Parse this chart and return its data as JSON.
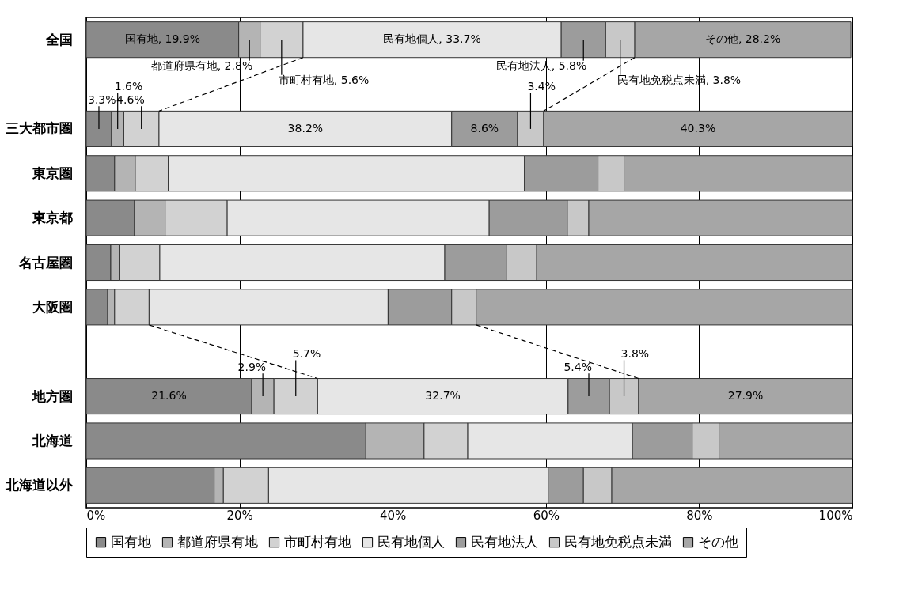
{
  "chart_data": {
    "type": "bar",
    "orientation": "horizontal",
    "stacked": true,
    "categories": [
      "全国",
      null,
      "三大都市圏",
      "東京圏",
      "東京都",
      "名古屋圏",
      "大阪圏",
      null,
      "地方圏",
      "北海道",
      "北海道以外"
    ],
    "series": [
      {
        "name": "国有地",
        "color": "#8a8a8a",
        "values": [
          19.9,
          null,
          3.3,
          3.7,
          6.3,
          3.2,
          2.8,
          null,
          21.6,
          36.5,
          16.7
        ],
        "value_labels": [
          "国有地, 19.9%",
          null,
          "3.3%",
          null,
          null,
          null,
          null,
          null,
          "21.6%",
          null,
          null
        ]
      },
      {
        "name": "都道府県有地",
        "color": "#b4b4b4",
        "values": [
          2.8,
          null,
          1.6,
          2.7,
          4.0,
          1.1,
          0.9,
          null,
          2.9,
          7.6,
          1.2
        ],
        "value_labels": [
          "都道府県有地, 2.8%",
          null,
          "1.6%",
          null,
          null,
          null,
          null,
          null,
          "2.9%",
          null,
          null
        ]
      },
      {
        "name": "市町村有地",
        "color": "#d2d2d2",
        "values": [
          5.6,
          null,
          4.6,
          4.3,
          8.1,
          5.3,
          4.5,
          null,
          5.7,
          5.7,
          5.9
        ],
        "value_labels": [
          "市町村有地, 5.6%",
          null,
          "4.6%",
          null,
          null,
          null,
          null,
          null,
          "5.7%",
          null,
          null
        ]
      },
      {
        "name": "民有地個人",
        "color": "#e6e6e6",
        "values": [
          33.7,
          null,
          38.2,
          46.5,
          34.2,
          37.2,
          31.2,
          null,
          32.7,
          21.5,
          36.5
        ],
        "value_labels": [
          "民有地個人, 33.7%",
          null,
          "38.2%",
          null,
          null,
          null,
          null,
          null,
          "32.7%",
          null,
          null
        ]
      },
      {
        "name": "民有地法人",
        "color": "#9c9c9c",
        "values": [
          5.8,
          null,
          8.6,
          9.6,
          10.2,
          8.1,
          8.3,
          null,
          5.4,
          7.8,
          4.6
        ],
        "value_labels": [
          "民有地法人, 5.8%",
          null,
          "8.6%",
          null,
          null,
          null,
          null,
          null,
          "5.4%",
          null,
          null
        ]
      },
      {
        "name": "民有地免税点未満",
        "color": "#c8c8c8",
        "values": [
          3.8,
          null,
          3.4,
          3.4,
          2.8,
          3.9,
          3.2,
          null,
          3.8,
          3.5,
          3.7
        ],
        "value_labels": [
          "民有地免税点未満, 3.8%",
          null,
          "3.4%",
          null,
          null,
          null,
          null,
          null,
          "3.8%",
          null,
          null
        ]
      },
      {
        "name": "その他",
        "color": "#a6a6a6",
        "values": [
          28.2,
          null,
          40.3,
          29.8,
          34.4,
          41.2,
          49.1,
          null,
          27.9,
          17.4,
          31.4
        ],
        "value_labels": [
          "その他, 28.2%",
          null,
          "40.3%",
          null,
          null,
          null,
          null,
          null,
          "27.9%",
          null,
          null
        ]
      }
    ],
    "xlim": [
      0,
      100
    ],
    "xticks": [
      {
        "value": 0,
        "label": "0%"
      },
      {
        "value": 20,
        "label": "20%"
      },
      {
        "value": 40,
        "label": "40%"
      },
      {
        "value": 60,
        "label": "60%"
      },
      {
        "value": 80,
        "label": "80%"
      },
      {
        "value": 100,
        "label": "100%"
      }
    ],
    "grid": "x",
    "legend": "bottom"
  }
}
